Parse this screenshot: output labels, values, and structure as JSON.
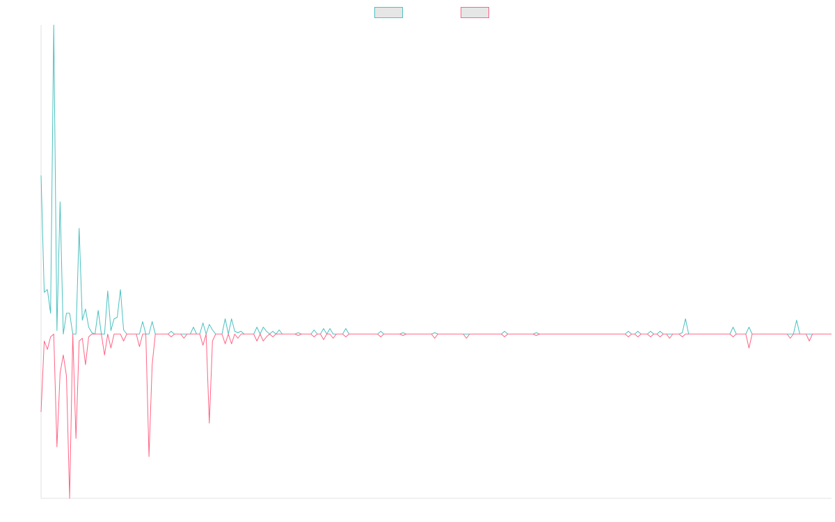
{
  "chart_data": {
    "type": "line",
    "ylim": [
      -236,
      444
    ],
    "legend": "top",
    "series": [
      {
        "color": "#4bc0c0",
        "values": [
          228,
          60,
          64,
          30,
          444,
          5,
          190,
          0,
          30,
          30,
          0,
          0,
          152,
          20,
          36,
          10,
          2,
          0,
          34,
          0,
          0,
          62,
          5,
          22,
          24,
          64,
          6,
          0,
          0,
          0,
          0,
          0,
          18,
          0,
          0,
          18,
          0,
          0,
          0,
          0,
          0,
          4,
          0,
          0,
          0,
          0,
          0,
          0,
          10,
          0,
          0,
          16,
          0,
          14,
          6,
          0,
          0,
          0,
          22,
          0,
          22,
          4,
          2,
          4,
          0,
          0,
          0,
          0,
          10,
          0,
          10,
          4,
          0,
          4,
          0,
          6,
          0,
          0,
          0,
          0,
          0,
          2,
          0,
          0,
          0,
          0,
          6,
          0,
          0,
          8,
          0,
          8,
          0,
          0,
          0,
          0,
          8,
          0,
          0,
          0,
          0,
          0,
          0,
          0,
          0,
          0,
          0,
          4,
          0,
          0,
          0,
          0,
          0,
          0,
          2,
          0,
          0,
          0,
          0,
          0,
          0,
          0,
          0,
          0,
          2,
          0,
          0,
          0,
          0,
          0,
          0,
          0,
          0,
          0,
          0,
          0,
          0,
          0,
          0,
          0,
          0,
          0,
          0,
          0,
          0,
          0,
          4,
          0,
          0,
          0,
          0,
          0,
          0,
          0,
          0,
          0,
          2,
          0,
          0,
          0,
          0,
          0,
          0,
          0,
          0,
          0,
          0,
          0,
          0,
          0,
          0,
          0,
          0,
          0,
          0,
          0,
          0,
          0,
          0,
          0,
          0,
          0,
          0,
          0,
          0,
          4,
          0,
          0,
          4,
          0,
          0,
          0,
          4,
          0,
          0,
          4,
          0,
          0,
          0,
          0,
          0,
          0,
          2,
          22,
          0,
          0,
          0,
          0,
          0,
          0,
          0,
          0,
          0,
          0,
          0,
          0,
          0,
          0,
          10,
          0,
          0,
          0,
          0,
          10,
          0,
          0,
          0,
          0,
          0,
          0,
          0,
          0,
          0,
          0,
          0,
          0,
          0,
          0,
          20,
          0,
          0,
          0,
          0,
          0,
          0,
          0,
          0,
          0,
          0,
          0
        ]
      },
      {
        "color": "#ff6384",
        "values": [
          -112,
          -10,
          -22,
          -4,
          0,
          -162,
          -56,
          -30,
          -60,
          -236,
          0,
          -150,
          -10,
          -6,
          -44,
          -4,
          0,
          0,
          0,
          0,
          -30,
          0,
          -20,
          0,
          0,
          0,
          -10,
          0,
          0,
          0,
          0,
          -18,
          0,
          0,
          -176,
          -44,
          0,
          0,
          0,
          0,
          0,
          -4,
          0,
          0,
          0,
          -6,
          0,
          0,
          0,
          0,
          0,
          -16,
          0,
          -128,
          -10,
          0,
          0,
          0,
          -14,
          0,
          -14,
          0,
          -6,
          0,
          0,
          0,
          0,
          0,
          -10,
          0,
          -10,
          -4,
          0,
          -4,
          0,
          0,
          0,
          0,
          0,
          0,
          0,
          -2,
          0,
          0,
          0,
          0,
          -4,
          0,
          0,
          -8,
          0,
          0,
          -6,
          0,
          0,
          0,
          -4,
          0,
          0,
          0,
          0,
          0,
          0,
          0,
          0,
          0,
          0,
          -4,
          0,
          0,
          0,
          0,
          0,
          0,
          -2,
          0,
          0,
          0,
          0,
          0,
          0,
          0,
          0,
          0,
          -6,
          0,
          0,
          0,
          0,
          0,
          0,
          0,
          0,
          0,
          -6,
          0,
          0,
          0,
          0,
          0,
          0,
          0,
          0,
          0,
          0,
          0,
          -4,
          0,
          0,
          0,
          0,
          0,
          0,
          0,
          0,
          0,
          -2,
          0,
          0,
          0,
          0,
          0,
          0,
          0,
          0,
          0,
          0,
          0,
          0,
          0,
          0,
          0,
          0,
          0,
          0,
          0,
          0,
          0,
          0,
          0,
          0,
          0,
          0,
          0,
          0,
          -4,
          0,
          0,
          -4,
          0,
          0,
          0,
          -4,
          0,
          0,
          -4,
          0,
          0,
          -6,
          0,
          0,
          0,
          -4,
          0,
          0,
          0,
          0,
          0,
          0,
          0,
          0,
          0,
          0,
          0,
          0,
          0,
          0,
          0,
          -4,
          0,
          0,
          0,
          0,
          -20,
          0,
          0,
          0,
          0,
          0,
          0,
          0,
          0,
          0,
          0,
          0,
          0,
          -6,
          0,
          0,
          0,
          0,
          0,
          -10,
          0,
          0,
          0,
          0,
          0,
          0,
          0
        ]
      }
    ]
  }
}
